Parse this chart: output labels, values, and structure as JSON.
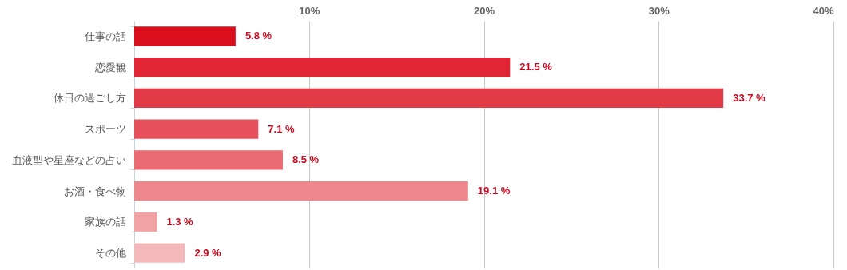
{
  "chart_data": {
    "type": "bar",
    "orientation": "horizontal",
    "categories": [
      "仕事の話",
      "恋愛観",
      "休日の過ごし方",
      "スポーツ",
      "血液型や星座などの占い",
      "お酒・食べ物",
      "家族の話",
      "その他"
    ],
    "values": [
      5.8,
      21.5,
      33.7,
      7.1,
      8.5,
      19.1,
      1.3,
      2.9
    ],
    "value_labels": [
      "5.8 %",
      "21.5 %",
      "33.7 %",
      "7.1 %",
      "8.5 %",
      "19.1 %",
      "1.3 %",
      "2.9 %"
    ],
    "colors": [
      "#d90f1e",
      "#e02535",
      "#e23a47",
      "#e6515b",
      "#eb6b72",
      "#ee888d",
      "#f1a2a5",
      "#f3b8ba"
    ],
    "xlim": [
      0,
      40
    ],
    "xticks": [
      {
        "value": 10,
        "label": "10%"
      },
      {
        "value": 20,
        "label": "20%"
      },
      {
        "value": 30,
        "label": "30%"
      },
      {
        "value": 40,
        "label": "40%"
      }
    ],
    "grid": "x"
  }
}
